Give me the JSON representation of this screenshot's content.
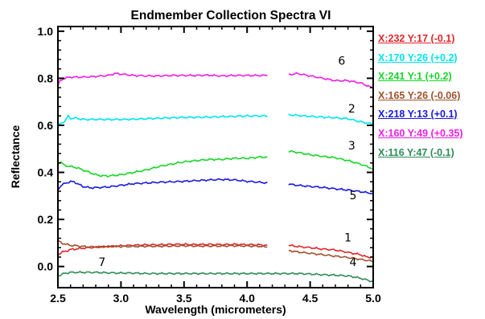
{
  "chart_data": {
    "type": "line",
    "title": "Endmember Collection Spectra VI",
    "xlabel": "Wavelength (micrometers)",
    "ylabel": "Reflectance",
    "xlim": [
      2.5,
      5.0
    ],
    "ylim": [
      -0.09,
      1.02
    ],
    "xticks": [
      2.5,
      3.0,
      3.5,
      4.0,
      4.5,
      5.0
    ],
    "xtick_labels": [
      "2.5",
      "3.0",
      "3.5",
      "4.0",
      "4.5",
      "5.0"
    ],
    "yticks": [
      0.0,
      0.2,
      0.4,
      0.6,
      0.8,
      1.0
    ],
    "ytick_labels": [
      "0.0",
      "0.2",
      "0.4",
      "0.6",
      "0.8",
      "1.0"
    ],
    "gap": [
      4.17,
      4.32
    ],
    "grid": false,
    "legend_position": "right",
    "series": [
      {
        "label": "1",
        "color": "#e0262b",
        "legend": "X:232 Y:17 (-0.1)",
        "label_pos": [
          4.8,
          0.106
        ],
        "points": [
          [
            2.5,
            0.05
          ],
          [
            2.53,
            0.06
          ],
          [
            2.56,
            0.065
          ],
          [
            2.6,
            0.072
          ],
          [
            2.65,
            0.075
          ],
          [
            2.7,
            0.078
          ],
          [
            2.8,
            0.082
          ],
          [
            2.9,
            0.085
          ],
          [
            3.0,
            0.088
          ],
          [
            3.1,
            0.09
          ],
          [
            3.2,
            0.092
          ],
          [
            3.3,
            0.092
          ],
          [
            3.4,
            0.094
          ],
          [
            3.5,
            0.094
          ],
          [
            3.6,
            0.093
          ],
          [
            3.7,
            0.094
          ],
          [
            3.8,
            0.093
          ],
          [
            3.9,
            0.094
          ],
          [
            4.0,
            0.093
          ],
          [
            4.1,
            0.092
          ],
          [
            4.16,
            0.09
          ],
          [
            4.33,
            0.09
          ],
          [
            4.4,
            0.085
          ],
          [
            4.5,
            0.08
          ],
          [
            4.6,
            0.074
          ],
          [
            4.7,
            0.07
          ],
          [
            4.8,
            0.06
          ],
          [
            4.9,
            0.05
          ],
          [
            4.95,
            0.04
          ],
          [
            5.0,
            0.04
          ]
        ]
      },
      {
        "label": "2",
        "color": "#00e5ee",
        "legend": "X:170 Y:26 (+0.2)",
        "label_pos": [
          4.83,
          0.655
        ],
        "points": [
          [
            2.5,
            0.6
          ],
          [
            2.53,
            0.61
          ],
          [
            2.56,
            0.62
          ],
          [
            2.58,
            0.64
          ],
          [
            2.6,
            0.63
          ],
          [
            2.65,
            0.63
          ],
          [
            2.7,
            0.625
          ],
          [
            2.8,
            0.625
          ],
          [
            2.9,
            0.625
          ],
          [
            3.0,
            0.625
          ],
          [
            3.1,
            0.626
          ],
          [
            3.2,
            0.628
          ],
          [
            3.3,
            0.63
          ],
          [
            3.4,
            0.632
          ],
          [
            3.5,
            0.634
          ],
          [
            3.6,
            0.634
          ],
          [
            3.7,
            0.635
          ],
          [
            3.8,
            0.637
          ],
          [
            3.9,
            0.638
          ],
          [
            4.0,
            0.64
          ],
          [
            4.1,
            0.64
          ],
          [
            4.16,
            0.64
          ],
          [
            4.33,
            0.645
          ],
          [
            4.4,
            0.642
          ],
          [
            4.5,
            0.638
          ],
          [
            4.6,
            0.635
          ],
          [
            4.7,
            0.632
          ],
          [
            4.8,
            0.628
          ],
          [
            4.9,
            0.615
          ],
          [
            5.0,
            0.605
          ]
        ]
      },
      {
        "label": "3",
        "color": "#17d627",
        "legend": "X:241 Y:1 (+0.2)",
        "label_pos": [
          4.83,
          0.498
        ],
        "points": [
          [
            2.5,
            0.44
          ],
          [
            2.52,
            0.445
          ],
          [
            2.55,
            0.43
          ],
          [
            2.6,
            0.425
          ],
          [
            2.65,
            0.42
          ],
          [
            2.7,
            0.41
          ],
          [
            2.75,
            0.4
          ],
          [
            2.8,
            0.39
          ],
          [
            2.85,
            0.385
          ],
          [
            2.9,
            0.385
          ],
          [
            3.0,
            0.39
          ],
          [
            3.1,
            0.4
          ],
          [
            3.2,
            0.41
          ],
          [
            3.3,
            0.425
          ],
          [
            3.4,
            0.435
          ],
          [
            3.5,
            0.445
          ],
          [
            3.6,
            0.45
          ],
          [
            3.7,
            0.455
          ],
          [
            3.8,
            0.455
          ],
          [
            3.9,
            0.46
          ],
          [
            4.0,
            0.46
          ],
          [
            4.1,
            0.465
          ],
          [
            4.16,
            0.465
          ],
          [
            4.33,
            0.49
          ],
          [
            4.4,
            0.485
          ],
          [
            4.5,
            0.475
          ],
          [
            4.6,
            0.468
          ],
          [
            4.7,
            0.462
          ],
          [
            4.8,
            0.45
          ],
          [
            4.9,
            0.435
          ],
          [
            5.0,
            0.415
          ]
        ]
      },
      {
        "label": "4",
        "color": "#a0522d",
        "legend": "X:165 Y:26 (-0.06)",
        "label_pos": [
          4.84,
          0.002
        ],
        "points": [
          [
            2.5,
            0.11
          ],
          [
            2.53,
            0.1
          ],
          [
            2.56,
            0.095
          ],
          [
            2.6,
            0.09
          ],
          [
            2.65,
            0.088
          ],
          [
            2.7,
            0.085
          ],
          [
            2.8,
            0.083
          ],
          [
            2.9,
            0.085
          ],
          [
            3.0,
            0.085
          ],
          [
            3.1,
            0.085
          ],
          [
            3.2,
            0.086
          ],
          [
            3.3,
            0.086
          ],
          [
            3.4,
            0.087
          ],
          [
            3.5,
            0.088
          ],
          [
            3.6,
            0.087
          ],
          [
            3.7,
            0.087
          ],
          [
            3.8,
            0.087
          ],
          [
            3.9,
            0.088
          ],
          [
            4.0,
            0.087
          ],
          [
            4.1,
            0.086
          ],
          [
            4.16,
            0.082
          ],
          [
            4.33,
            0.068
          ],
          [
            4.4,
            0.062
          ],
          [
            4.5,
            0.056
          ],
          [
            4.6,
            0.05
          ],
          [
            4.7,
            0.044
          ],
          [
            4.8,
            0.038
          ],
          [
            4.9,
            0.03
          ],
          [
            5.0,
            0.022
          ]
        ]
      },
      {
        "label": "5",
        "color": "#1a1adf",
        "legend": "X:218 Y:13 (+0.1)",
        "label_pos": [
          4.84,
          0.285
        ],
        "points": [
          [
            2.5,
            0.33
          ],
          [
            2.53,
            0.345
          ],
          [
            2.56,
            0.355
          ],
          [
            2.6,
            0.36
          ],
          [
            2.63,
            0.36
          ],
          [
            2.66,
            0.35
          ],
          [
            2.7,
            0.34
          ],
          [
            2.75,
            0.335
          ],
          [
            2.8,
            0.335
          ],
          [
            2.9,
            0.338
          ],
          [
            3.0,
            0.345
          ],
          [
            3.1,
            0.352
          ],
          [
            3.2,
            0.355
          ],
          [
            3.3,
            0.358
          ],
          [
            3.4,
            0.36
          ],
          [
            3.5,
            0.362
          ],
          [
            3.6,
            0.365
          ],
          [
            3.7,
            0.368
          ],
          [
            3.8,
            0.37
          ],
          [
            3.9,
            0.368
          ],
          [
            4.0,
            0.362
          ],
          [
            4.1,
            0.358
          ],
          [
            4.16,
            0.355
          ],
          [
            4.33,
            0.35
          ],
          [
            4.4,
            0.345
          ],
          [
            4.5,
            0.34
          ],
          [
            4.6,
            0.336
          ],
          [
            4.7,
            0.33
          ],
          [
            4.8,
            0.325
          ],
          [
            4.9,
            0.318
          ],
          [
            5.0,
            0.31
          ]
        ]
      },
      {
        "label": "6",
        "color": "#ee1ee6",
        "legend": "X:160 Y:49 (+0.35)",
        "label_pos": [
          4.75,
          0.858
        ],
        "points": [
          [
            2.5,
            0.77
          ],
          [
            2.52,
            0.79
          ],
          [
            2.55,
            0.8
          ],
          [
            2.6,
            0.805
          ],
          [
            2.7,
            0.805
          ],
          [
            2.8,
            0.808
          ],
          [
            2.9,
            0.812
          ],
          [
            2.95,
            0.82
          ],
          [
            3.0,
            0.818
          ],
          [
            3.1,
            0.812
          ],
          [
            3.2,
            0.81
          ],
          [
            3.3,
            0.81
          ],
          [
            3.4,
            0.812
          ],
          [
            3.5,
            0.812
          ],
          [
            3.6,
            0.812
          ],
          [
            3.7,
            0.813
          ],
          [
            3.8,
            0.81
          ],
          [
            3.9,
            0.812
          ],
          [
            4.0,
            0.812
          ],
          [
            4.1,
            0.812
          ],
          [
            4.16,
            0.812
          ],
          [
            4.33,
            0.815
          ],
          [
            4.4,
            0.82
          ],
          [
            4.5,
            0.81
          ],
          [
            4.6,
            0.8
          ],
          [
            4.7,
            0.79
          ],
          [
            4.8,
            0.79
          ],
          [
            4.9,
            0.78
          ],
          [
            5.0,
            0.758
          ]
        ]
      },
      {
        "label": "7",
        "color": "#2e8b57",
        "legend": "X:116 Y:47 (-0.1)",
        "label_pos": [
          2.85,
          0.002
        ],
        "points": [
          [
            2.5,
            -0.04
          ],
          [
            2.55,
            -0.03
          ],
          [
            2.6,
            -0.025
          ],
          [
            2.7,
            -0.025
          ],
          [
            2.8,
            -0.025
          ],
          [
            2.9,
            -0.027
          ],
          [
            3.0,
            -0.028
          ],
          [
            3.1,
            -0.028
          ],
          [
            3.2,
            -0.03
          ],
          [
            3.3,
            -0.03
          ],
          [
            3.4,
            -0.03
          ],
          [
            3.5,
            -0.03
          ],
          [
            3.6,
            -0.03
          ],
          [
            3.7,
            -0.03
          ],
          [
            3.8,
            -0.03
          ],
          [
            3.9,
            -0.03
          ],
          [
            4.0,
            -0.03
          ],
          [
            4.1,
            -0.03
          ],
          [
            4.2,
            -0.03
          ],
          [
            4.3,
            -0.03
          ],
          [
            4.4,
            -0.03
          ],
          [
            4.5,
            -0.032
          ],
          [
            4.6,
            -0.035
          ],
          [
            4.7,
            -0.037
          ],
          [
            4.8,
            -0.04
          ],
          [
            4.9,
            -0.05
          ],
          [
            5.0,
            -0.065
          ]
        ]
      }
    ]
  }
}
